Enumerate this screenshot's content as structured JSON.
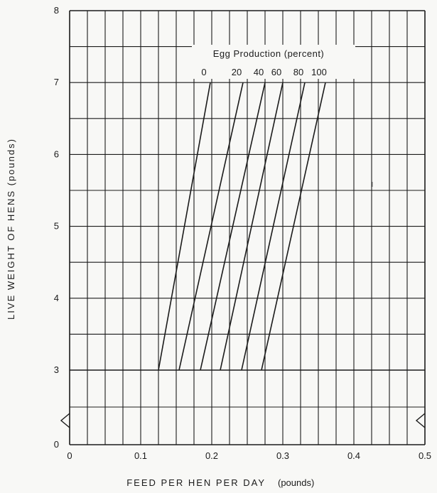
{
  "chart_data": {
    "type": "line",
    "title": "",
    "xlabel": "FEED PER HEN PER DAY",
    "xlabel_unit": "(pounds)",
    "ylabel": "LIVE WEIGHT OF HENS (pounds)",
    "xlim": [
      0,
      0.5
    ],
    "ylim": [
      0,
      8
    ],
    "y_axis_break": "between 0 and 3",
    "grid": true,
    "x_tick_labels": [
      "0",
      "0.1",
      "0.2",
      "0.3",
      "0.4",
      "0.5"
    ],
    "y_tick_labels": [
      "0",
      "3",
      "4",
      "5",
      "6",
      "7",
      "8"
    ],
    "legend": {
      "title": "Egg Production (percent)",
      "placement": "top-center",
      "labels": [
        "0",
        "20",
        "40",
        "60",
        "80",
        "100"
      ]
    },
    "series": [
      {
        "name": "0",
        "x": [
          0.125,
          0.198
        ],
        "y": [
          3,
          7
        ]
      },
      {
        "name": "20",
        "x": [
          0.154,
          0.244
        ],
        "y": [
          3,
          7
        ]
      },
      {
        "name": "40",
        "x": [
          0.184,
          0.275
        ],
        "y": [
          3,
          7
        ]
      },
      {
        "name": "60",
        "x": [
          0.212,
          0.3
        ],
        "y": [
          3,
          7
        ]
      },
      {
        "name": "80",
        "x": [
          0.242,
          0.331
        ],
        "y": [
          3,
          7
        ]
      },
      {
        "name": "100",
        "x": [
          0.27,
          0.36
        ],
        "y": [
          3,
          7
        ]
      }
    ],
    "colors": {
      "line": "#1b1b1b",
      "grid": "#1b1b1b",
      "background": "#f8f8f6"
    }
  }
}
